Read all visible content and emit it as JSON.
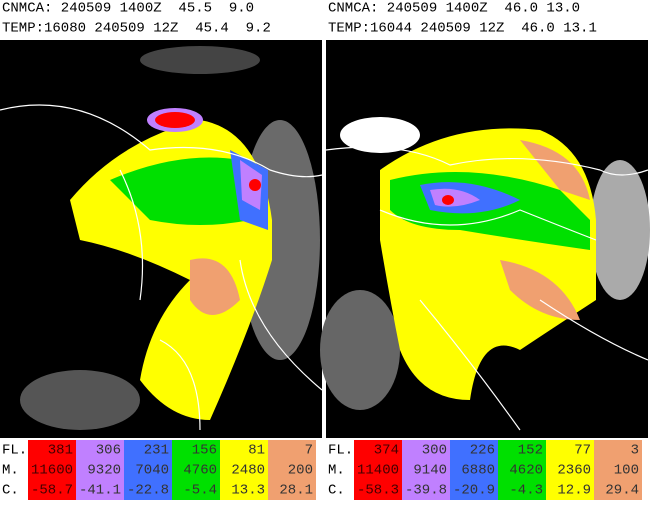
{
  "panels": [
    {
      "header": [
        "CNMCA: 240509 1400Z  45.5  9.0",
        "TEMP:16080 240509 12Z  45.4  9.2"
      ],
      "legend": {
        "colors": [
          "#ff0000",
          "#c080ff",
          "#4070ff",
          "#00e000",
          "#ffff00",
          "#f0a070"
        ],
        "rows": [
          {
            "label": "FL.",
            "values": [
              381,
              306,
              231,
              156,
              81,
              7
            ]
          },
          {
            "label": "M.",
            "values": [
              11600,
              9320,
              7040,
              4760,
              2480,
              200
            ]
          },
          {
            "label": "C.",
            "values": [
              -58.7,
              -41.1,
              -22.8,
              -5.4,
              13.3,
              28.1
            ]
          }
        ]
      }
    },
    {
      "header": [
        "CNMCA: 240509 1400Z  46.0 13.0",
        "TEMP:16044 240509 12Z  46.0 13.1"
      ],
      "legend": {
        "colors": [
          "#ff0000",
          "#c080ff",
          "#4070ff",
          "#00e000",
          "#ffff00",
          "#f0a070"
        ],
        "rows": [
          {
            "label": "FL.",
            "values": [
              374,
              300,
              226,
              152,
              77,
              3
            ]
          },
          {
            "label": "M.",
            "values": [
              11400,
              9140,
              6880,
              4620,
              2360,
              100
            ]
          },
          {
            "label": "C.",
            "values": [
              -58.3,
              -39.8,
              -20.9,
              -4.3,
              12.9,
              29.4
            ]
          }
        ]
      }
    }
  ]
}
